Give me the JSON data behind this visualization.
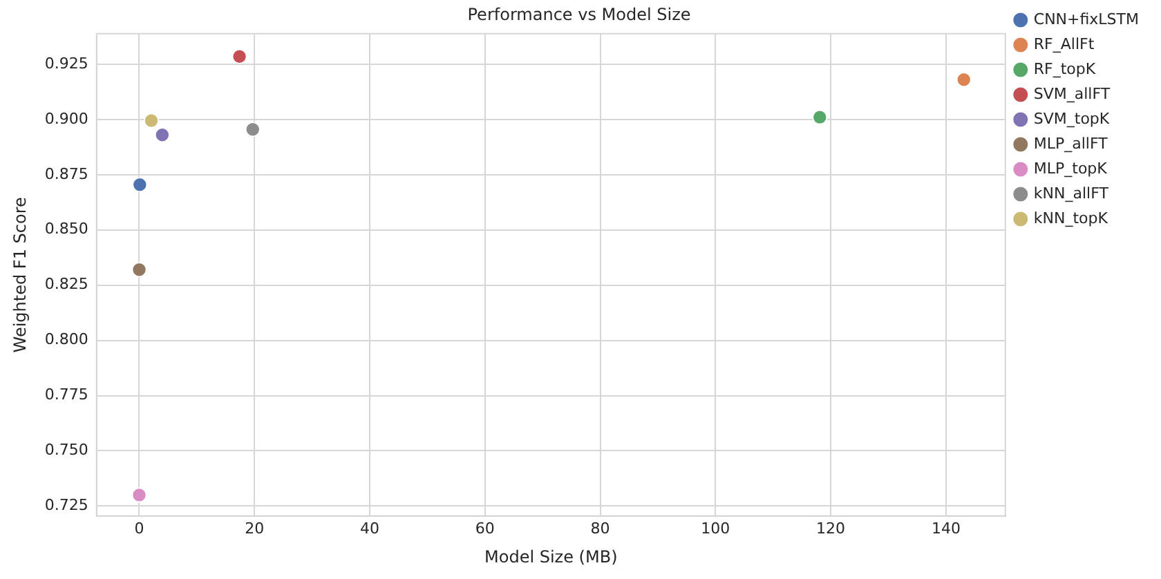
{
  "chart_data": {
    "type": "scatter",
    "title": "Performance vs Model Size",
    "xlabel": "Model Size (MB)",
    "ylabel": "Weighted F1 Score",
    "series": [
      {
        "name": "CNN+fixLSTM",
        "color": "#4c72b0",
        "x": [
          0.1
        ],
        "values": [
          0.8705
        ]
      },
      {
        "name": "RF_AllFt",
        "color": "#dd8452",
        "x": [
          143.1
        ],
        "values": [
          0.918
        ]
      },
      {
        "name": "RF_topK",
        "color": "#55a868",
        "x": [
          118.1
        ],
        "values": [
          0.901
        ]
      },
      {
        "name": "SVM_allFT",
        "color": "#c44e52",
        "x": [
          17.4
        ],
        "values": [
          0.9285
        ]
      },
      {
        "name": "SVM_topK",
        "color": "#8172b3",
        "x": [
          4.0
        ],
        "values": [
          0.893
        ]
      },
      {
        "name": "MLP_allFT",
        "color": "#937860",
        "x": [
          0.0
        ],
        "values": [
          0.832
        ]
      },
      {
        "name": "MLP_topK",
        "color": "#da8bc3",
        "x": [
          0.0
        ],
        "values": [
          0.73
        ]
      },
      {
        "name": "kNN_allFT",
        "color": "#8c8c8c",
        "x": [
          19.7
        ],
        "values": [
          0.8955
        ]
      },
      {
        "name": "kNN_topK",
        "color": "#ccb974",
        "x": [
          2.1
        ],
        "values": [
          0.8995
        ]
      }
    ],
    "xlim": [
      -7.4,
      150.3
    ],
    "xticks": [
      0,
      20,
      40,
      60,
      80,
      100,
      120,
      140
    ],
    "ylim": [
      0.7205,
      0.9388
    ],
    "yticks": [
      0.725,
      {
        "value": 0.75,
        "label": "0.750"
      },
      0.775,
      {
        "value": 0.8,
        "label": "0.800"
      },
      0.825,
      {
        "value": 0.85,
        "label": "0.850"
      },
      0.875,
      {
        "value": 0.9,
        "label": "0.900"
      },
      0.925
    ],
    "grid": true,
    "legend": "top right",
    "marker": "circle"
  }
}
